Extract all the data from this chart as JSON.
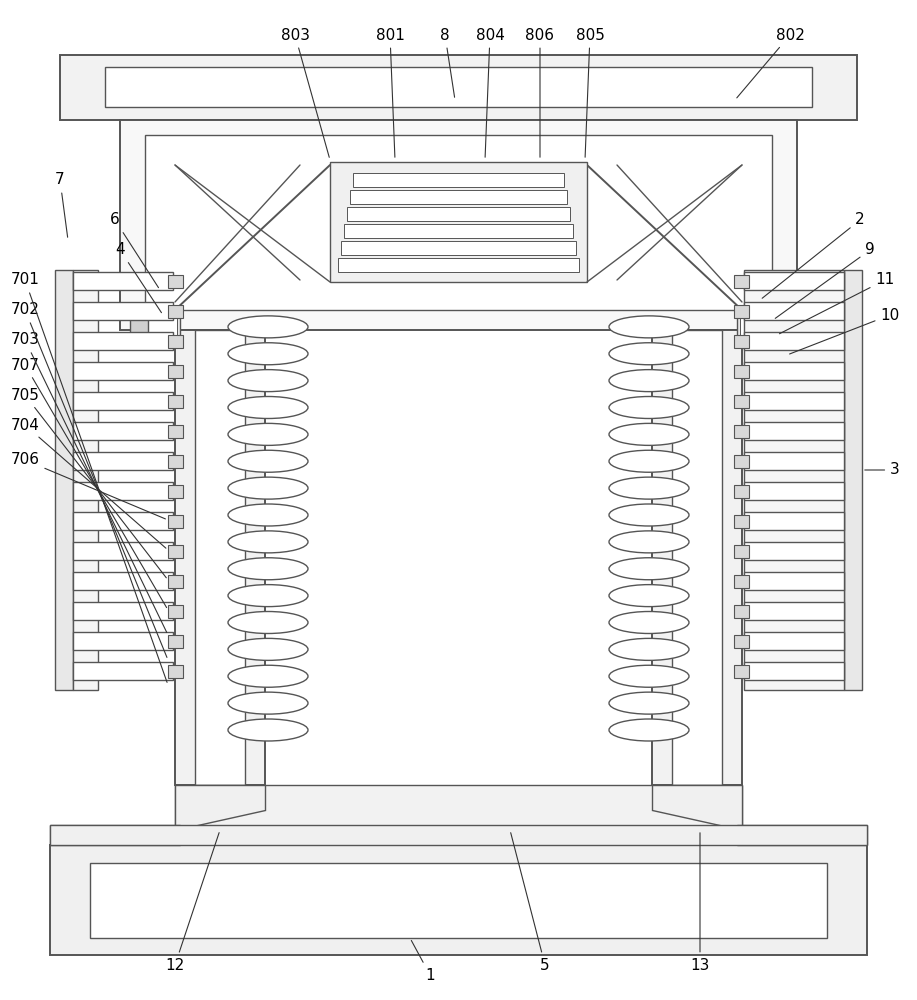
{
  "bg_color": "#ffffff",
  "lc": "#555555",
  "lw": 1.0,
  "lw2": 1.4,
  "fig_width": 9.17,
  "fig_height": 10.0
}
